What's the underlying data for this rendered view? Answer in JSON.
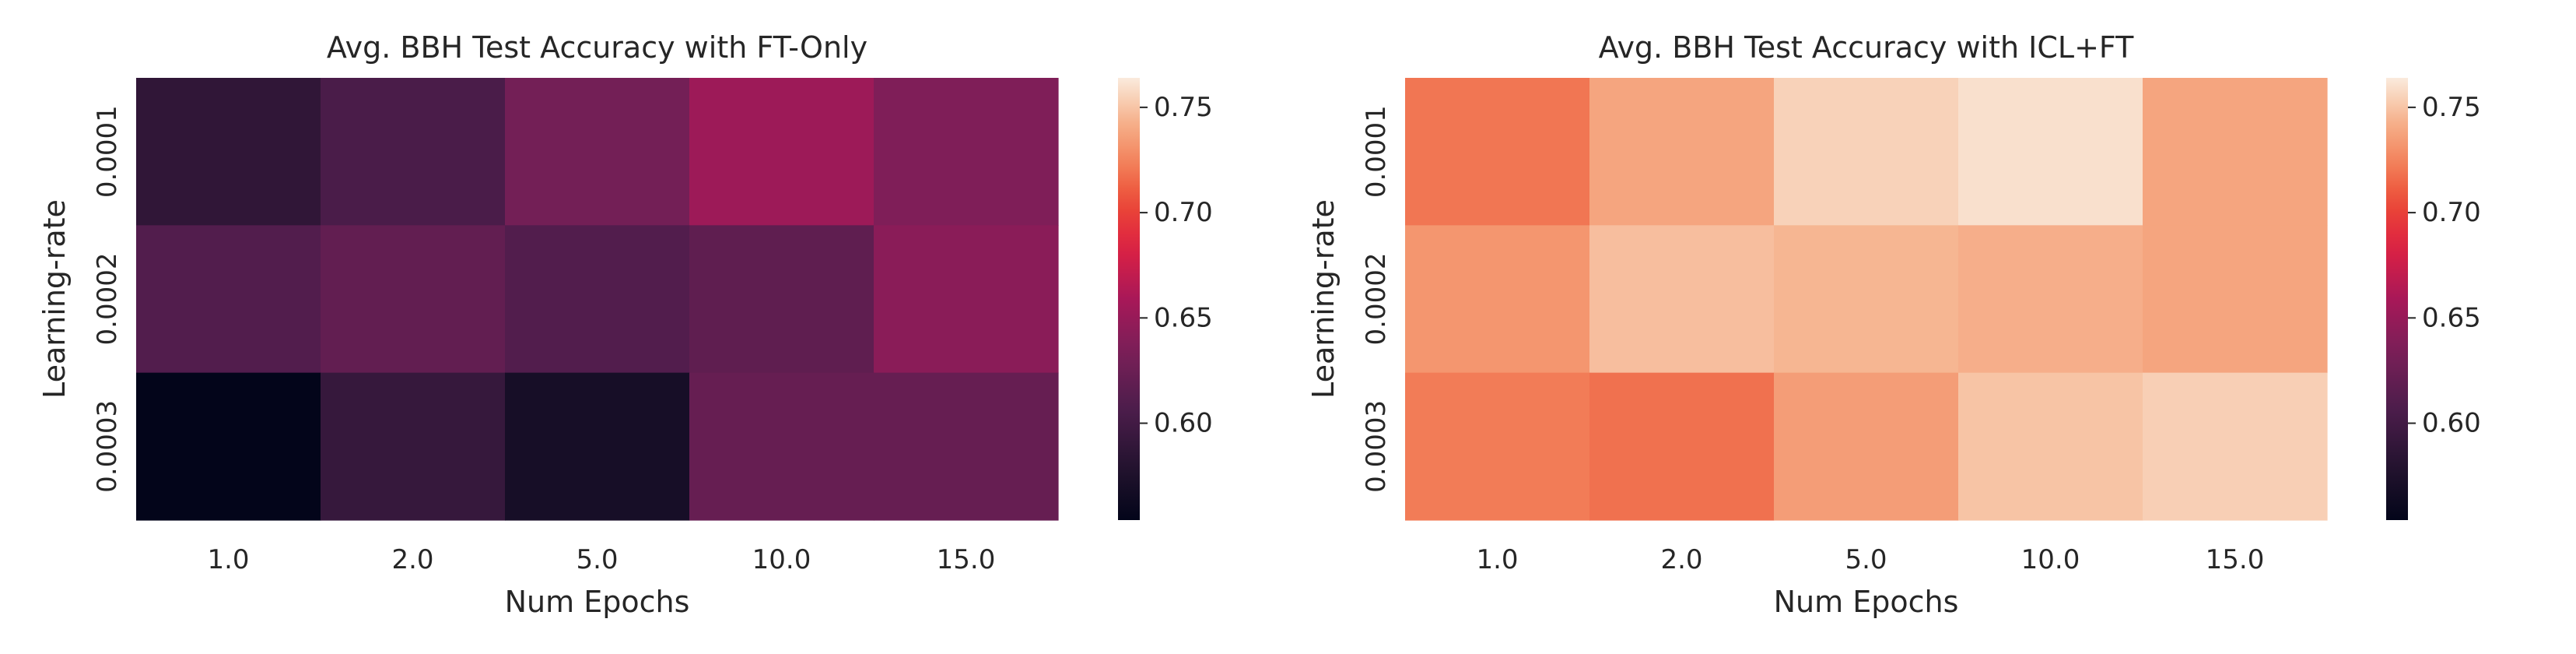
{
  "chart_data": [
    {
      "type": "heatmap",
      "title": "Avg. BBH Test Accuracy with FT-Only",
      "xlabel": "Num Epochs",
      "ylabel": "Learning-rate",
      "x": [
        "1.0",
        "2.0",
        "5.0",
        "10.0",
        "15.0"
      ],
      "y": [
        "0.0001",
        "0.0002",
        "0.0003"
      ],
      "values": [
        [
          0.588,
          0.605,
          0.63,
          0.653,
          0.637
        ],
        [
          0.61,
          0.62,
          0.61,
          0.618,
          0.643
        ],
        [
          0.554,
          0.592,
          0.57,
          0.622,
          0.622
        ]
      ],
      "colorbar": {
        "range": [
          0.554,
          0.764
        ],
        "ticks": [
          "0.60",
          "0.65",
          "0.70",
          "0.75"
        ],
        "colormap": "rocket"
      }
    },
    {
      "type": "heatmap",
      "title": "Avg. BBH Test Accuracy with ICL+FT",
      "xlabel": "Num Epochs",
      "ylabel": "Learning-rate",
      "x": [
        "1.0",
        "2.0",
        "5.0",
        "10.0",
        "15.0"
      ],
      "y": [
        "0.0001",
        "0.0002",
        "0.0003"
      ],
      "values": [
        [
          0.72,
          0.738,
          0.755,
          0.76,
          0.738
        ],
        [
          0.732,
          0.748,
          0.745,
          0.742,
          0.738
        ],
        [
          0.722,
          0.718,
          0.735,
          0.75,
          0.754
        ]
      ],
      "colorbar": {
        "range": [
          0.554,
          0.764
        ],
        "ticks": [
          "0.60",
          "0.65",
          "0.70",
          "0.75"
        ],
        "colormap": "rocket"
      }
    }
  ]
}
